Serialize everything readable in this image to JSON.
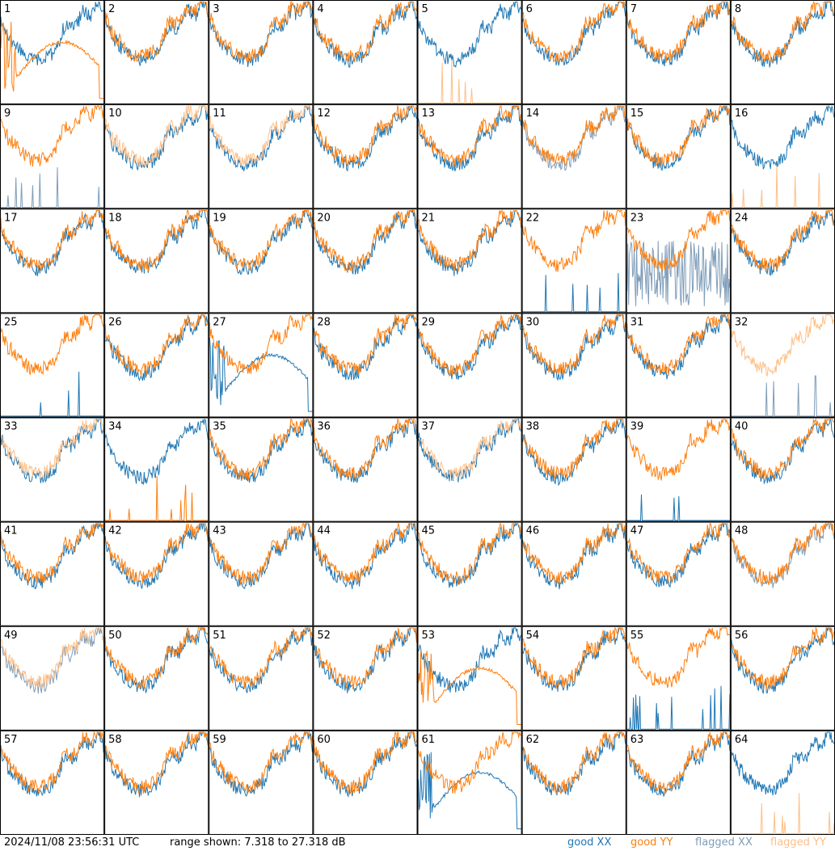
{
  "chart_data": {
    "type": "line",
    "panels": {
      "labels": [
        "1",
        "2",
        "3",
        "4",
        "5",
        "6",
        "7",
        "8",
        "9",
        "10",
        "11",
        "12",
        "13",
        "14",
        "15",
        "16",
        "17",
        "18",
        "19",
        "20",
        "21",
        "22",
        "23",
        "24",
        "25",
        "26",
        "27",
        "28",
        "29",
        "30",
        "31",
        "32",
        "33",
        "34",
        "35",
        "36",
        "37",
        "38",
        "39",
        "40",
        "41",
        "42",
        "43",
        "44",
        "45",
        "46",
        "47",
        "48",
        "49",
        "50",
        "51",
        "52",
        "53",
        "54",
        "55",
        "56",
        "57",
        "58",
        "59",
        "60",
        "61",
        "62",
        "63",
        "64"
      ],
      "xx_status": [
        "good",
        "good",
        "good",
        "good",
        "good",
        "good",
        "good",
        "good",
        "flagged",
        "good",
        "good",
        "good",
        "good",
        "flagged",
        "good",
        "good",
        "good",
        "good",
        "good",
        "good",
        "good",
        "good",
        "flagged",
        "good",
        "good",
        "good",
        "good",
        "good",
        "good",
        "good",
        "good",
        "flagged",
        "good",
        "good",
        "good",
        "good",
        "good",
        "good",
        "good",
        "good",
        "good",
        "good",
        "good",
        "good",
        "good",
        "good",
        "good",
        "flagged",
        "flagged",
        "good",
        "good",
        "good",
        "good",
        "good",
        "good",
        "good",
        "good",
        "good",
        "good",
        "good",
        "good",
        "good",
        "good",
        "good"
      ],
      "yy_status": [
        "good",
        "good",
        "good",
        "good",
        "flagged",
        "good",
        "good",
        "good",
        "good",
        "flagged",
        "flagged",
        "good",
        "good",
        "good",
        "good",
        "flagged",
        "good",
        "good",
        "good",
        "good",
        "good",
        "good",
        "good",
        "good",
        "good",
        "good",
        "good",
        "good",
        "good",
        "good",
        "good",
        "flagged",
        "flagged",
        "good",
        "good",
        "good",
        "flagged",
        "good",
        "good",
        "good",
        "good",
        "good",
        "good",
        "good",
        "good",
        "good",
        "good",
        "good",
        "flagged",
        "good",
        "good",
        "good",
        "good",
        "good",
        "good",
        "good",
        "good",
        "good",
        "good",
        "good",
        "good",
        "good",
        "good",
        "flagged"
      ],
      "xx_pattern": [
        "normal",
        "normal",
        "normal",
        "normal",
        "normal",
        "normal",
        "normal",
        "normal",
        "spikes",
        "normal",
        "normal",
        "normal",
        "normal",
        "normal",
        "normal",
        "normal",
        "normal",
        "normal",
        "normal",
        "normal",
        "normal",
        "spikes",
        "noisy",
        "normal",
        "spikes",
        "normal",
        "hump",
        "normal",
        "normal",
        "normal",
        "normal",
        "spikes",
        "normal",
        "normal",
        "normal",
        "normal",
        "normal",
        "normal",
        "spikes",
        "normal",
        "normal",
        "normal",
        "normal",
        "normal",
        "normal",
        "normal",
        "normal",
        "normal",
        "normal",
        "normal",
        "normal",
        "normal",
        "normal",
        "normal",
        "spikes",
        "normal",
        "normal",
        "normal",
        "normal",
        "normal",
        "hump",
        "normal",
        "normal",
        "normal"
      ],
      "yy_pattern": [
        "hump",
        "normal",
        "normal",
        "normal",
        "spikes",
        "normal",
        "normal",
        "normal",
        "normal",
        "normal",
        "normal",
        "normal",
        "normal",
        "normal",
        "normal",
        "spikes",
        "normal",
        "normal",
        "normal",
        "normal",
        "normal",
        "normal",
        "normal",
        "normal",
        "normal",
        "normal",
        "normal",
        "normal",
        "normal",
        "normal",
        "normal",
        "normal",
        "normal",
        "spikes",
        "normal",
        "normal",
        "normal",
        "normal",
        "normal",
        "normal",
        "normal",
        "normal",
        "normal",
        "normal",
        "normal",
        "normal",
        "normal",
        "normal",
        "normal",
        "normal",
        "normal",
        "normal",
        "hump",
        "normal",
        "normal",
        "normal",
        "normal",
        "normal",
        "normal",
        "normal",
        "normal",
        "normal",
        "normal",
        "spikes"
      ]
    },
    "yrange": [
      7.318,
      27.318
    ],
    "series": [
      {
        "name": "good XX",
        "color": "#1f77b4"
      },
      {
        "name": "good YY",
        "color": "#ff7f0e"
      },
      {
        "name": "flagged XX",
        "color": "#7f9db9"
      },
      {
        "name": "flagged YY",
        "color": "#ffbf87"
      }
    ],
    "grid": "8x8",
    "legend_position": "bottom-right"
  },
  "footer": {
    "timestamp": "2024/11/08 23:56:31 UTC",
    "range_text": "range shown: 7.318 to 27.318 dB"
  }
}
